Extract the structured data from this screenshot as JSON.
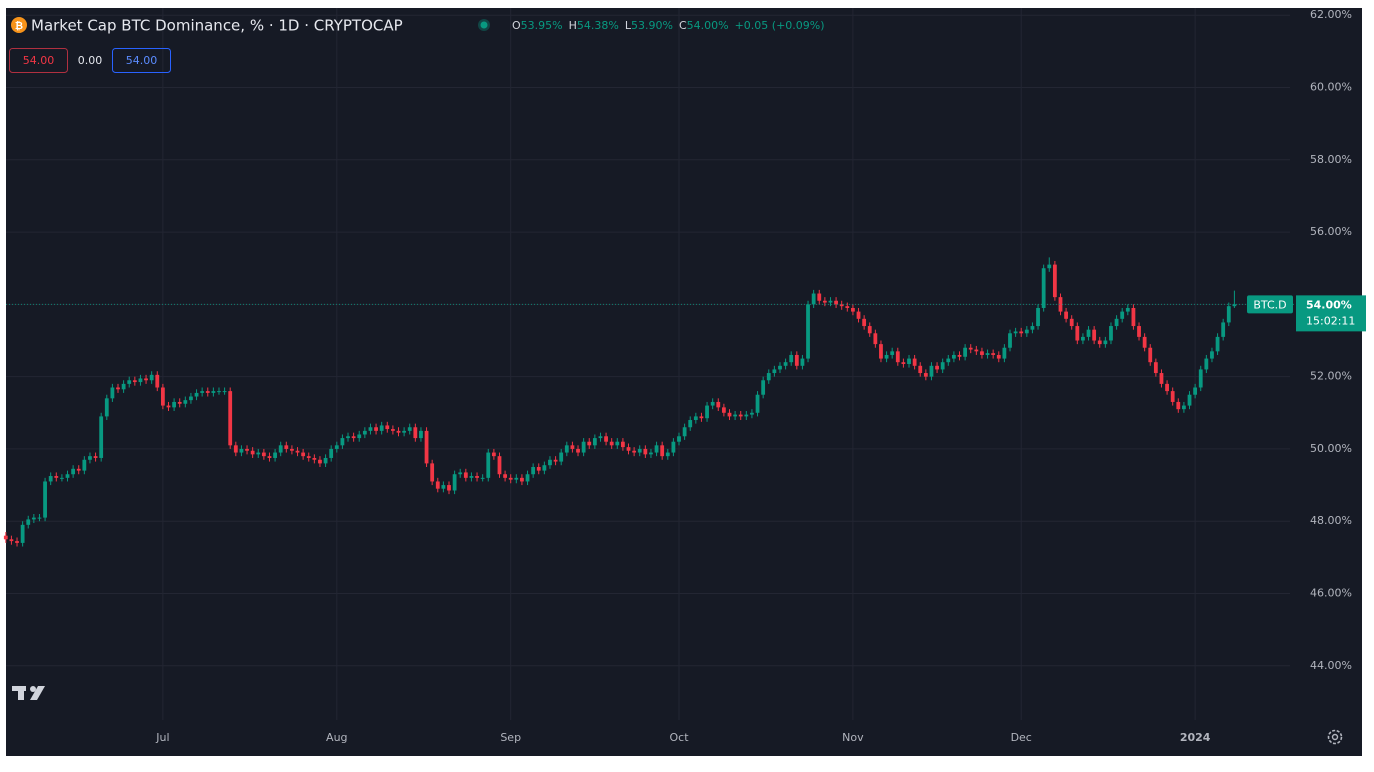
{
  "chart_data": {
    "type": "candlestick",
    "title": "Market Cap BTC Dominance, % · 1D · CRYPTOCAP",
    "ohlc_legend": [
      {
        "key": "O",
        "text": "53.95%"
      },
      {
        "key": "H",
        "text": "54.38%"
      },
      {
        "key": "L",
        "text": "53.90%"
      },
      {
        "key": "C",
        "text": "54.00%"
      }
    ],
    "change": "+0.05 (+0.09%)",
    "inputs": [
      "54.00",
      "0.00",
      "54.00"
    ],
    "symbol": "BTC.D",
    "last_price": {
      "value": 54,
      "label": "54.00%"
    },
    "countdown": "15:02:11",
    "up_color": "#089981",
    "down_color": "#f23645",
    "grid": true,
    "ylim": [
      42.5,
      62.2
    ],
    "yticks": [
      {
        "value": 44,
        "label": "44.00%"
      },
      {
        "value": 46,
        "label": "46.00%"
      },
      {
        "value": 48,
        "label": "48.00%"
      },
      {
        "value": 50,
        "label": "50.00%"
      },
      {
        "value": 52,
        "label": "52.00%"
      },
      {
        "value": 54,
        "label": "54.00%"
      },
      {
        "value": 56,
        "label": "56.00%"
      },
      {
        "value": 58,
        "label": "58.00%"
      },
      {
        "value": 60,
        "label": "60.00%"
      },
      {
        "value": 62,
        "label": "62.00%"
      }
    ],
    "categories": [
      null,
      null,
      null,
      null,
      null,
      null,
      null,
      null,
      null,
      null,
      null,
      null,
      null,
      null,
      null,
      null,
      null,
      null,
      null,
      null,
      null,
      null,
      null,
      null,
      null,
      null,
      null,
      null,
      "Jul",
      null,
      null,
      null,
      null,
      null,
      null,
      null,
      null,
      null,
      null,
      null,
      null,
      null,
      null,
      null,
      null,
      null,
      null,
      null,
      null,
      null,
      null,
      null,
      null,
      null,
      null,
      null,
      null,
      null,
      null,
      "Aug",
      null,
      null,
      null,
      null,
      null,
      null,
      null,
      null,
      null,
      null,
      null,
      null,
      null,
      null,
      null,
      null,
      null,
      null,
      null,
      null,
      null,
      null,
      null,
      null,
      null,
      null,
      null,
      null,
      null,
      null,
      "Sep",
      null,
      null,
      null,
      null,
      null,
      null,
      null,
      null,
      null,
      null,
      null,
      null,
      null,
      null,
      null,
      null,
      null,
      null,
      null,
      null,
      null,
      null,
      null,
      null,
      null,
      null,
      null,
      null,
      null,
      "Oct",
      null,
      null,
      null,
      null,
      null,
      null,
      null,
      null,
      null,
      null,
      null,
      null,
      null,
      null,
      null,
      null,
      null,
      null,
      null,
      null,
      null,
      null,
      null,
      null,
      null,
      null,
      null,
      null,
      null,
      null,
      "Nov",
      null,
      null,
      null,
      null,
      null,
      null,
      null,
      null,
      null,
      null,
      null,
      null,
      null,
      null,
      null,
      null,
      null,
      null,
      null,
      null,
      null,
      null,
      null,
      null,
      null,
      null,
      null,
      null,
      null,
      "Dec",
      null,
      null,
      null,
      null,
      null,
      null,
      null,
      null,
      null,
      null,
      null,
      null,
      null,
      null,
      null,
      null,
      null,
      null,
      null,
      null,
      null,
      null,
      null,
      null,
      null,
      null,
      null,
      null,
      null,
      null,
      "2024",
      null,
      null,
      null,
      null,
      null,
      null,
      null
    ],
    "open": [
      47.6,
      47.5,
      47.45,
      47.4,
      47.9,
      48.05,
      48.1,
      48.1,
      49.1,
      49.25,
      49.2,
      49.2,
      49.3,
      49.45,
      49.4,
      49.7,
      49.8,
      49.75,
      50.9,
      51.4,
      51.7,
      51.65,
      51.8,
      51.9,
      51.85,
      51.95,
      51.9,
      52.05,
      51.7,
      51.2,
      51.15,
      51.3,
      51.25,
      51.35,
      51.45,
      51.55,
      51.6,
      51.55,
      51.6,
      51.6,
      51.6,
      50.1,
      49.9,
      50.0,
      49.95,
      49.85,
      49.9,
      49.8,
      49.75,
      49.9,
      50.1,
      50.0,
      49.95,
      49.9,
      49.8,
      49.75,
      49.7,
      49.6,
      49.75,
      50.0,
      50.1,
      50.3,
      50.35,
      50.3,
      50.4,
      50.5,
      50.6,
      50.5,
      50.65,
      50.55,
      50.5,
      50.45,
      50.5,
      50.6,
      50.3,
      50.5,
      49.6,
      49.1,
      48.9,
      49.0,
      48.85,
      49.3,
      49.35,
      49.2,
      49.25,
      49.2,
      49.2,
      49.9,
      49.8,
      49.3,
      49.2,
      49.15,
      49.2,
      49.1,
      49.3,
      49.5,
      49.4,
      49.55,
      49.7,
      49.65,
      49.9,
      50.1,
      50.0,
      49.9,
      50.2,
      50.1,
      50.3,
      50.35,
      50.2,
      50.1,
      50.2,
      50.05,
      49.95,
      49.9,
      50.0,
      49.85,
      49.9,
      50.1,
      49.8,
      49.9,
      50.2,
      50.35,
      50.6,
      50.8,
      50.9,
      50.85,
      51.2,
      51.3,
      51.15,
      51.0,
      50.9,
      50.95,
      50.9,
      50.95,
      51.0,
      51.5,
      51.9,
      52.1,
      52.2,
      52.3,
      52.4,
      52.6,
      52.3,
      52.5,
      54.0,
      54.3,
      54.1,
      54.05,
      54.1,
      54.0,
      53.95,
      53.9,
      53.8,
      53.6,
      53.4,
      53.2,
      52.9,
      52.5,
      52.6,
      52.7,
      52.4,
      52.35,
      52.5,
      52.3,
      52.1,
      52.0,
      52.3,
      52.2,
      52.4,
      52.5,
      52.6,
      52.55,
      52.8,
      52.75,
      52.7,
      52.6,
      52.65,
      52.6,
      52.5,
      52.8,
      53.2,
      53.25,
      53.2,
      53.3,
      53.4,
      53.9,
      55.0,
      55.1,
      54.2,
      53.8,
      53.6,
      53.4,
      53.0,
      53.1,
      53.3,
      53.0,
      52.9,
      53.0,
      53.4,
      53.6,
      53.8,
      53.9,
      53.4,
      53.1,
      52.8,
      52.4,
      52.1,
      51.8,
      51.6,
      51.3,
      51.1,
      51.2,
      51.5,
      51.7,
      52.2,
      52.5,
      52.7,
      53.1,
      53.5,
      53.95
    ],
    "high": [
      47.7,
      47.6,
      47.55,
      48.0,
      48.15,
      48.2,
      48.2,
      49.2,
      49.35,
      49.35,
      49.3,
      49.4,
      49.55,
      49.55,
      49.8,
      49.9,
      49.9,
      51.0,
      51.5,
      51.8,
      51.8,
      51.9,
      52.0,
      52.0,
      52.05,
      52.05,
      52.15,
      52.15,
      51.8,
      51.3,
      51.4,
      51.4,
      51.45,
      51.55,
      51.65,
      51.7,
      51.7,
      51.7,
      51.7,
      51.7,
      51.7,
      50.2,
      50.1,
      50.1,
      50.05,
      50.0,
      50.0,
      49.9,
      50.0,
      50.2,
      50.2,
      50.1,
      50.05,
      50.0,
      49.9,
      49.85,
      49.8,
      49.85,
      50.1,
      50.2,
      50.4,
      50.45,
      50.45,
      50.5,
      50.6,
      50.7,
      50.7,
      50.75,
      50.75,
      50.65,
      50.6,
      50.6,
      50.7,
      50.7,
      50.6,
      50.6,
      49.7,
      49.2,
      49.1,
      49.1,
      49.4,
      49.45,
      49.45,
      49.35,
      49.35,
      49.3,
      50.0,
      50.0,
      49.9,
      49.4,
      49.3,
      49.3,
      49.3,
      49.4,
      49.6,
      49.6,
      49.65,
      49.8,
      49.8,
      50.0,
      50.2,
      50.2,
      50.1,
      50.3,
      50.3,
      50.4,
      50.45,
      50.45,
      50.3,
      50.3,
      50.3,
      50.15,
      50.05,
      50.1,
      50.1,
      50.0,
      50.2,
      50.2,
      50.0,
      50.3,
      50.45,
      50.7,
      50.9,
      51.0,
      51.0,
      51.3,
      51.4,
      51.4,
      51.25,
      51.1,
      51.05,
      51.05,
      51.05,
      51.1,
      51.6,
      52.0,
      52.2,
      52.3,
      52.4,
      52.5,
      52.7,
      52.7,
      52.6,
      54.1,
      54.4,
      54.4,
      54.2,
      54.2,
      54.2,
      54.1,
      54.05,
      54.0,
      53.9,
      53.7,
      53.5,
      53.3,
      53.0,
      52.7,
      52.8,
      52.8,
      52.5,
      52.6,
      52.6,
      52.4,
      52.2,
      52.4,
      52.4,
      52.5,
      52.6,
      52.7,
      52.7,
      52.9,
      52.9,
      52.85,
      52.8,
      52.75,
      52.75,
      52.7,
      52.9,
      53.3,
      53.35,
      53.35,
      53.4,
      53.5,
      54.0,
      55.1,
      55.3,
      55.2,
      54.3,
      53.9,
      53.7,
      53.5,
      53.2,
      53.4,
      53.4,
      53.1,
      53.1,
      53.5,
      53.7,
      53.9,
      54.0,
      54.0,
      53.5,
      53.2,
      52.9,
      52.5,
      52.2,
      51.9,
      51.7,
      51.4,
      51.3,
      51.6,
      51.8,
      52.3,
      52.6,
      52.8,
      53.2,
      53.6,
      54.05,
      54.38
    ],
    "low": [
      47.4,
      47.35,
      47.3,
      47.3,
      47.8,
      47.95,
      48.0,
      48.0,
      49.0,
      49.1,
      49.1,
      49.1,
      49.2,
      49.3,
      49.3,
      49.6,
      49.65,
      49.65,
      50.8,
      51.3,
      51.55,
      51.55,
      51.7,
      51.75,
      51.75,
      51.8,
      51.8,
      51.6,
      51.1,
      51.05,
      51.05,
      51.15,
      51.15,
      51.25,
      51.35,
      51.45,
      51.45,
      51.45,
      51.5,
      51.5,
      50.0,
      49.8,
      49.8,
      49.85,
      49.75,
      49.75,
      49.7,
      49.65,
      49.65,
      49.8,
      49.9,
      49.85,
      49.8,
      49.7,
      49.65,
      49.6,
      49.5,
      49.5,
      49.65,
      49.9,
      50.0,
      50.2,
      50.2,
      50.2,
      50.3,
      50.4,
      50.4,
      50.4,
      50.45,
      50.4,
      50.35,
      50.35,
      50.4,
      50.2,
      50.2,
      49.5,
      49.0,
      48.8,
      48.8,
      48.75,
      48.75,
      49.2,
      49.1,
      49.1,
      49.1,
      49.1,
      49.1,
      49.7,
      49.2,
      49.1,
      49.05,
      49.05,
      49.0,
      49.0,
      49.2,
      49.3,
      49.3,
      49.45,
      49.55,
      49.55,
      49.8,
      49.9,
      49.8,
      49.8,
      50.0,
      50.0,
      50.2,
      50.1,
      50.0,
      50.0,
      49.95,
      49.85,
      49.8,
      49.8,
      49.75,
      49.75,
      49.8,
      49.7,
      49.7,
      49.8,
      50.1,
      50.25,
      50.5,
      50.7,
      50.75,
      50.75,
      51.1,
      51.05,
      50.9,
      50.8,
      50.8,
      50.8,
      50.8,
      50.85,
      50.9,
      51.4,
      51.8,
      52.0,
      52.1,
      52.2,
      52.3,
      52.2,
      52.2,
      52.4,
      53.9,
      54.0,
      53.95,
      53.95,
      53.9,
      53.85,
      53.8,
      53.7,
      53.5,
      53.3,
      53.1,
      52.8,
      52.4,
      52.4,
      52.5,
      52.3,
      52.25,
      52.25,
      52.2,
      52.0,
      51.9,
      51.9,
      52.1,
      52.1,
      52.3,
      52.4,
      52.45,
      52.45,
      52.65,
      52.6,
      52.5,
      52.5,
      52.5,
      52.4,
      52.4,
      52.7,
      53.1,
      53.1,
      53.1,
      53.2,
      53.3,
      53.8,
      54.9,
      54.1,
      53.7,
      53.5,
      53.3,
      52.9,
      52.9,
      53.0,
      52.9,
      52.8,
      52.8,
      52.9,
      53.3,
      53.5,
      53.7,
      53.3,
      53.0,
      52.7,
      52.3,
      52.0,
      51.7,
      51.5,
      51.2,
      51.0,
      51.0,
      51.1,
      51.4,
      51.6,
      52.1,
      52.4,
      52.6,
      53.0,
      53.4,
      53.9
    ],
    "close": [
      47.5,
      47.45,
      47.4,
      47.9,
      48.05,
      48.1,
      48.1,
      49.1,
      49.25,
      49.2,
      49.2,
      49.3,
      49.45,
      49.4,
      49.7,
      49.8,
      49.75,
      50.9,
      51.4,
      51.7,
      51.65,
      51.8,
      51.9,
      51.85,
      51.95,
      51.9,
      52.05,
      51.7,
      51.2,
      51.15,
      51.3,
      51.25,
      51.35,
      51.45,
      51.55,
      51.6,
      51.55,
      51.6,
      51.6,
      51.6,
      50.1,
      49.9,
      50.0,
      49.95,
      49.85,
      49.9,
      49.8,
      49.75,
      49.9,
      50.1,
      50.0,
      49.95,
      49.9,
      49.8,
      49.75,
      49.7,
      49.6,
      49.75,
      50.0,
      50.1,
      50.3,
      50.35,
      50.3,
      50.4,
      50.5,
      50.6,
      50.5,
      50.65,
      50.55,
      50.5,
      50.45,
      50.5,
      50.6,
      50.3,
      50.5,
      49.6,
      49.1,
      48.9,
      49.0,
      48.85,
      49.3,
      49.35,
      49.2,
      49.25,
      49.2,
      49.2,
      49.9,
      49.8,
      49.3,
      49.2,
      49.15,
      49.2,
      49.1,
      49.3,
      49.5,
      49.4,
      49.55,
      49.7,
      49.65,
      49.9,
      50.1,
      50.0,
      49.9,
      50.2,
      50.1,
      50.3,
      50.35,
      50.2,
      50.1,
      50.2,
      50.05,
      49.95,
      49.9,
      50.0,
      49.85,
      49.9,
      50.1,
      49.8,
      49.9,
      50.2,
      50.35,
      50.6,
      50.8,
      50.9,
      50.85,
      51.2,
      51.3,
      51.15,
      51.0,
      50.9,
      50.95,
      50.9,
      50.95,
      51.0,
      51.5,
      51.9,
      52.1,
      52.2,
      52.3,
      52.4,
      52.6,
      52.3,
      52.5,
      54.0,
      54.3,
      54.1,
      54.05,
      54.1,
      54.0,
      53.95,
      53.9,
      53.8,
      53.6,
      53.4,
      53.2,
      52.9,
      52.5,
      52.6,
      52.7,
      52.4,
      52.35,
      52.5,
      52.3,
      52.1,
      52.0,
      52.3,
      52.2,
      52.4,
      52.5,
      52.6,
      52.55,
      52.8,
      52.75,
      52.7,
      52.6,
      52.65,
      52.6,
      52.5,
      52.8,
      53.2,
      53.25,
      53.2,
      53.3,
      53.4,
      53.9,
      55.0,
      55.1,
      54.2,
      53.8,
      53.6,
      53.4,
      53.0,
      53.1,
      53.3,
      53.0,
      52.9,
      53.0,
      53.4,
      53.6,
      53.8,
      53.9,
      53.4,
      53.1,
      52.8,
      52.4,
      52.1,
      51.8,
      51.6,
      51.3,
      51.1,
      51.2,
      51.5,
      51.7,
      52.2,
      52.5,
      52.7,
      53.1,
      53.5,
      53.95,
      54.0
    ]
  }
}
